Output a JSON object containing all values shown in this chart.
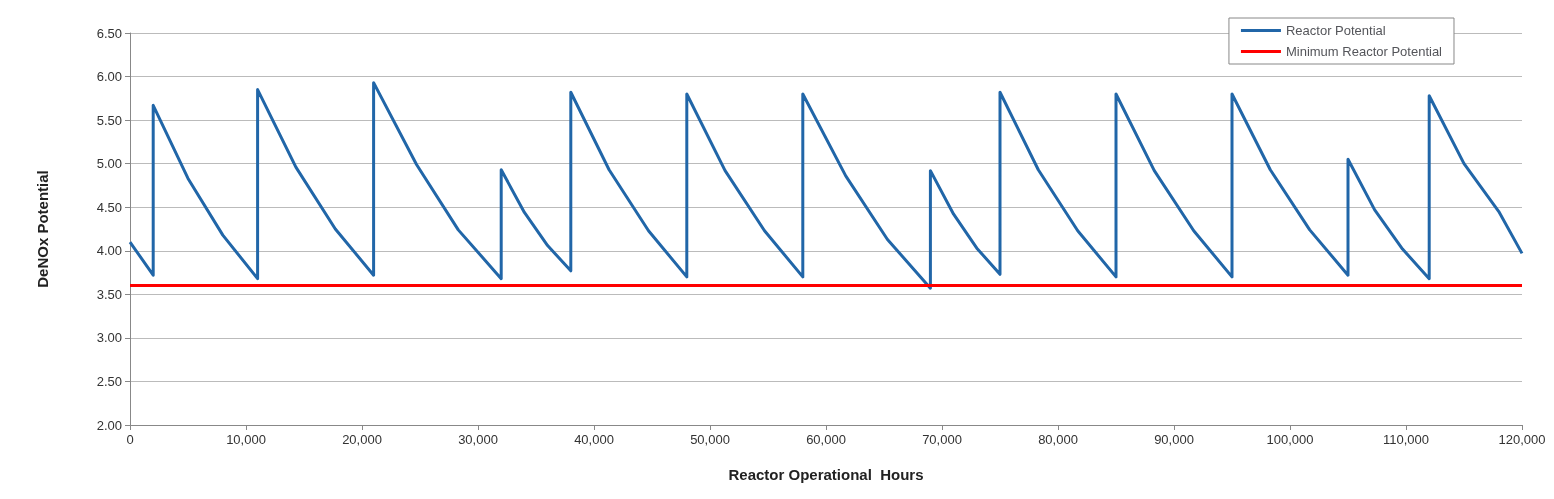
{
  "chart_data": {
    "type": "line",
    "xlabel": "Reactor Operational  Hours",
    "ylabel": "DeNOx Potential",
    "series": [
      {
        "name": "Reactor Potential",
        "color": "#2166a8",
        "x": [
          0,
          2000,
          2000,
          5000,
          8000,
          11000,
          11000,
          14300,
          17700,
          21000,
          21000,
          24700,
          28300,
          32000,
          32000,
          34000,
          36000,
          38000,
          38000,
          41300,
          44700,
          48000,
          48000,
          51300,
          54700,
          58000,
          58000,
          61700,
          65300,
          69000,
          69000,
          71000,
          73000,
          75000,
          75000,
          78300,
          81700,
          85000,
          85000,
          88300,
          91700,
          95000,
          95000,
          98300,
          101700,
          105000,
          105000,
          107300,
          109700,
          112000,
          112000,
          115000,
          118000,
          120000
        ],
        "values": [
          4.1,
          3.72,
          5.67,
          4.83,
          4.18,
          3.68,
          5.85,
          4.96,
          4.25,
          3.72,
          5.93,
          4.99,
          4.24,
          3.68,
          4.93,
          4.44,
          4.06,
          3.77,
          5.82,
          4.93,
          4.23,
          3.7,
          5.8,
          4.92,
          4.23,
          3.7,
          5.8,
          4.86,
          4.13,
          3.57,
          4.92,
          4.42,
          4.03,
          3.73,
          5.82,
          4.93,
          4.23,
          3.7,
          5.8,
          4.92,
          4.23,
          3.7,
          5.8,
          4.93,
          4.24,
          3.72,
          5.05,
          4.47,
          4.02,
          3.68,
          5.78,
          5.0,
          4.45,
          3.97
        ]
      },
      {
        "name": "Minimum Reactor Potential",
        "color": "#ff0000",
        "x": [
          0,
          120000
        ],
        "values": [
          3.6,
          3.6
        ]
      }
    ],
    "xlim": [
      0,
      120000
    ],
    "xticks": [
      0,
      {
        "value": 10000,
        "label": "10,000"
      },
      {
        "value": 20000,
        "label": "20,000"
      },
      {
        "value": 30000,
        "label": "30,000"
      },
      {
        "value": 40000,
        "label": "40,000"
      },
      {
        "value": 50000,
        "label": "50,000"
      },
      {
        "value": 60000,
        "label": "60,000"
      },
      {
        "value": 70000,
        "label": "70,000"
      },
      {
        "value": 80000,
        "label": "80,000"
      },
      {
        "value": 90000,
        "label": "90,000"
      },
      {
        "value": 100000,
        "label": "100,000"
      },
      {
        "value": 110000,
        "label": "110,000"
      },
      {
        "value": 120000,
        "label": "120,000"
      }
    ],
    "ylim": [
      2,
      6.5
    ],
    "yticks": [
      {
        "value": 2,
        "label": "2.00"
      },
      {
        "value": 2.5,
        "label": "2.50"
      },
      {
        "value": 3,
        "label": "3.00"
      },
      {
        "value": 3.5,
        "label": "3.50"
      },
      {
        "value": 4,
        "label": "4.00"
      },
      {
        "value": 4.5,
        "label": "4.50"
      },
      {
        "value": 5,
        "label": "5.00"
      },
      {
        "value": 5.5,
        "label": "5.50"
      },
      {
        "value": 6,
        "label": "6.00"
      },
      {
        "value": 6.5,
        "label": "6.50"
      }
    ],
    "grid": "y",
    "legend": "top right",
    "marker": "none",
    "line_style": "solid"
  }
}
